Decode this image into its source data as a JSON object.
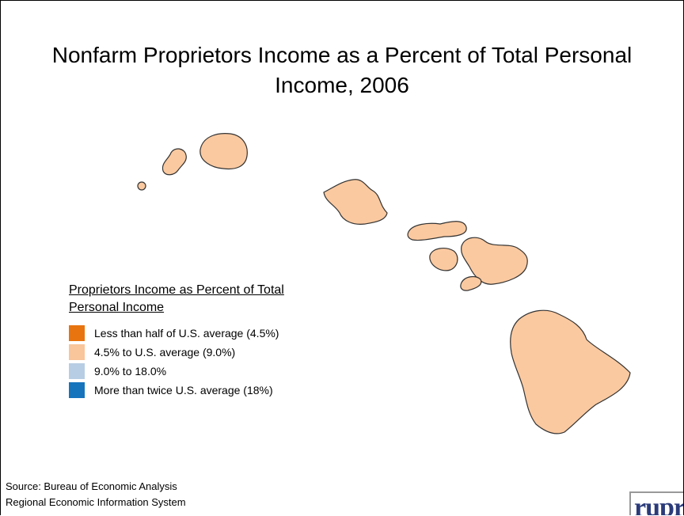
{
  "title": "Nonfarm Proprietors Income as a Percent of Total Personal Income, 2006",
  "legend": {
    "title": "Proprietors Income as Percent of Total Personal Income",
    "items": [
      {
        "label": "Less than half of U.S. average (4.5%)",
        "color": "#e8740f"
      },
      {
        "label": "4.5% to U.S. average (9.0%)",
        "color": "#f9c59b"
      },
      {
        "label": "9.0% to 18.0%",
        "color": "#b7cde3"
      },
      {
        "label": "More than twice U.S. average (18%)",
        "color": "#1674bd"
      }
    ]
  },
  "source": [
    "Source: Bureau of Economic Analysis",
    "Regional Economic Information System"
  ],
  "logo": "rupri"
}
